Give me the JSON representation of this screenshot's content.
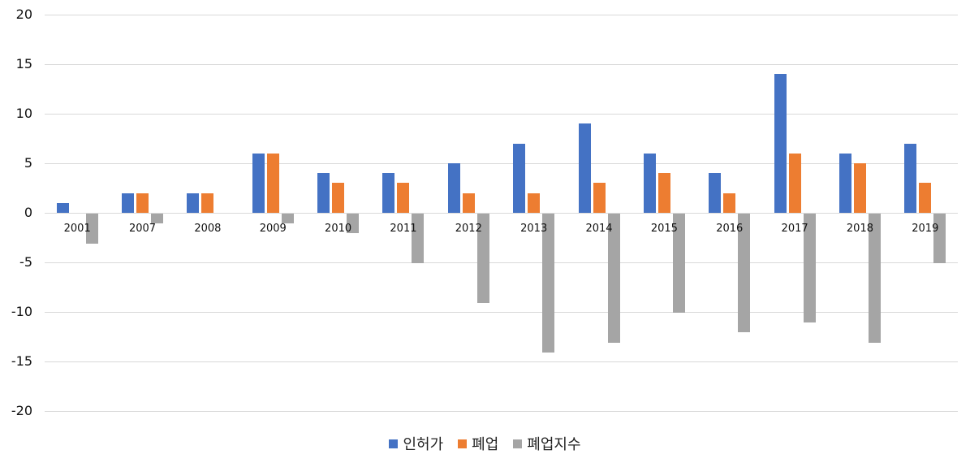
{
  "chart_data": {
    "type": "bar",
    "title": "",
    "xlabel": "",
    "ylabel": "",
    "ylim": [
      -20,
      20
    ],
    "yticks": [
      20,
      15,
      10,
      5,
      0,
      -5,
      -10,
      -15,
      -20
    ],
    "grid": true,
    "legend_position": "bottom",
    "categories": [
      "2001",
      "2007",
      "2008",
      "2009",
      "2010",
      "2011",
      "2012",
      "2013",
      "2014",
      "2015",
      "2016",
      "2017",
      "2018",
      "2019"
    ],
    "series": [
      {
        "name": "인허가",
        "color": "#4472c4",
        "values": [
          1,
          2,
          2,
          6,
          4,
          4,
          5,
          7,
          9,
          6,
          4,
          14,
          6,
          7
        ]
      },
      {
        "name": "폐업",
        "color": "#ed7d31",
        "values": [
          0,
          2,
          2,
          6,
          3,
          3,
          2,
          2,
          3,
          4,
          2,
          6,
          5,
          3
        ]
      },
      {
        "name": "폐업지수",
        "color": "#a5a5a5",
        "values": [
          -3,
          -1,
          0,
          -1,
          -2,
          -5,
          -9,
          -14,
          -13,
          -10,
          -12,
          -11,
          -13,
          -5
        ]
      }
    ]
  }
}
